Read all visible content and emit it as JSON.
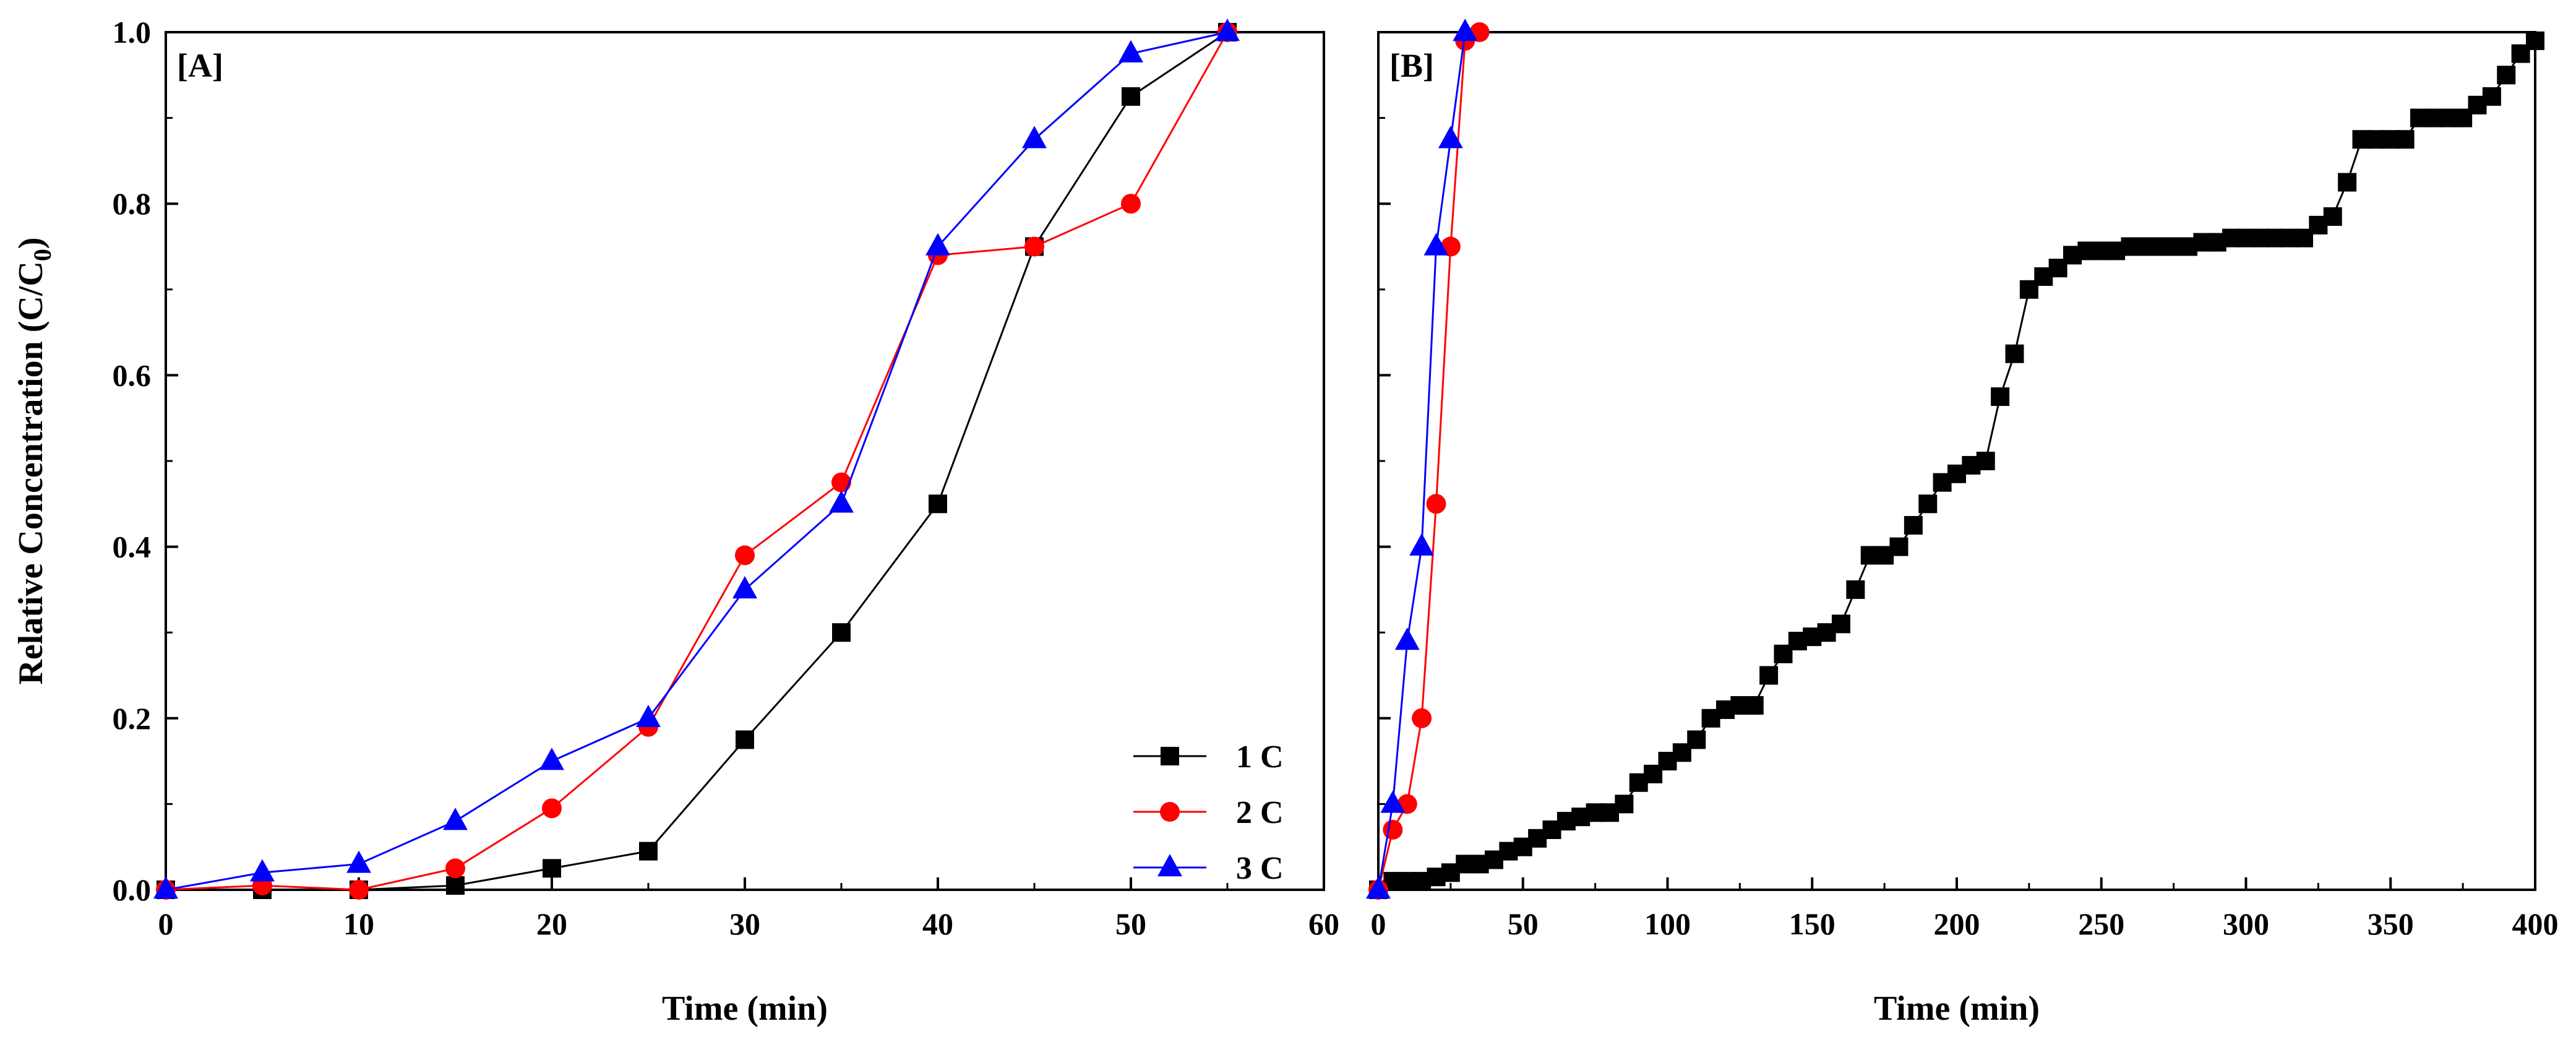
{
  "chart_data": [
    {
      "type": "line",
      "panel_label": "[A]",
      "xlabel": "Time (min)",
      "ylabel": "Relative Concentration (C/C",
      "ylabel_sub": "0",
      "ylabel_suffix": ")",
      "xlim": [
        0,
        60
      ],
      "ylim": [
        0,
        1.0
      ],
      "xticks": [
        0,
        10,
        20,
        30,
        40,
        50,
        60
      ],
      "yticks": [
        0.0,
        0.2,
        0.4,
        0.6,
        0.8,
        1.0
      ],
      "ytick_labels": [
        "0.0",
        "0.2",
        "0.4",
        "0.6",
        "0.8",
        "1.0"
      ],
      "legend": {
        "position": "bottom-right"
      },
      "series": [
        {
          "name": "1 C",
          "marker": "square",
          "color": "#000000",
          "x": [
            0,
            5,
            10,
            15,
            20,
            25,
            30,
            35,
            40,
            45,
            50,
            55
          ],
          "y": [
            0,
            0,
            0,
            0.005,
            0.025,
            0.045,
            0.175,
            0.3,
            0.45,
            0.75,
            0.925,
            1.0
          ]
        },
        {
          "name": "2 C",
          "marker": "circle",
          "color": "#ff0000",
          "x": [
            0,
            5,
            10,
            15,
            20,
            25,
            30,
            35,
            40,
            45,
            50,
            55
          ],
          "y": [
            0,
            0.005,
            0,
            0.025,
            0.095,
            0.19,
            0.39,
            0.475,
            0.74,
            0.75,
            0.8,
            1.0
          ]
        },
        {
          "name": "3 C",
          "marker": "triangle",
          "color": "#0000ff",
          "x": [
            0,
            5,
            10,
            15,
            20,
            25,
            30,
            35,
            40,
            45,
            50,
            55
          ],
          "y": [
            0,
            0.02,
            0.03,
            0.08,
            0.15,
            0.2,
            0.35,
            0.45,
            0.75,
            0.875,
            0.975,
            1.0
          ]
        }
      ]
    },
    {
      "type": "line",
      "panel_label": "[B]",
      "xlabel": "Time (min)",
      "xlim": [
        0,
        400
      ],
      "ylim": [
        0,
        1.0
      ],
      "xticks": [
        0,
        50,
        100,
        150,
        200,
        250,
        300,
        350,
        400
      ],
      "yticks": [
        0.0,
        0.2,
        0.4,
        0.6,
        0.8,
        1.0
      ],
      "series": [
        {
          "name": "1 C",
          "marker": "square",
          "color": "#000000",
          "x": [
            0,
            5,
            10,
            15,
            20,
            25,
            30,
            35,
            40,
            45,
            50,
            55,
            60,
            65,
            70,
            75,
            80,
            85,
            90,
            95,
            100,
            105,
            110,
            115,
            120,
            125,
            130,
            135,
            140,
            145,
            150,
            155,
            160,
            165,
            170,
            175,
            180,
            185,
            190,
            195,
            200,
            205,
            210,
            215,
            220,
            225,
            230,
            235,
            240,
            245,
            250,
            255,
            260,
            265,
            270,
            275,
            280,
            285,
            290,
            295,
            300,
            305,
            310,
            315,
            320,
            325,
            330,
            335,
            340,
            345,
            350,
            355,
            360,
            365,
            370,
            375,
            380,
            385,
            390,
            395,
            400
          ],
          "y": [
            0,
            0.01,
            0.01,
            0.01,
            0.015,
            0.02,
            0.03,
            0.03,
            0.035,
            0.045,
            0.05,
            0.06,
            0.07,
            0.08,
            0.085,
            0.09,
            0.09,
            0.1,
            0.125,
            0.135,
            0.15,
            0.16,
            0.175,
            0.2,
            0.21,
            0.215,
            0.215,
            0.25,
            0.275,
            0.29,
            0.295,
            0.3,
            0.31,
            0.35,
            0.39,
            0.39,
            0.4,
            0.425,
            0.45,
            0.475,
            0.485,
            0.495,
            0.5,
            0.575,
            0.625,
            0.7,
            0.715,
            0.725,
            0.74,
            0.745,
            0.745,
            0.745,
            0.75,
            0.75,
            0.75,
            0.75,
            0.75,
            0.755,
            0.755,
            0.76,
            0.76,
            0.76,
            0.76,
            0.76,
            0.76,
            0.775,
            0.785,
            0.825,
            0.875,
            0.875,
            0.875,
            0.875,
            0.9,
            0.9,
            0.9,
            0.9,
            0.915,
            0.925,
            0.95,
            0.975,
            0.99
          ]
        },
        {
          "name": "2 C",
          "marker": "circle",
          "color": "#ff0000",
          "x": [
            0,
            5,
            10,
            15,
            20,
            25,
            30,
            35
          ],
          "y": [
            0,
            0.07,
            0.1,
            0.2,
            0.45,
            0.75,
            0.99,
            1.0
          ]
        },
        {
          "name": "3 C",
          "marker": "triangle",
          "color": "#0000ff",
          "x": [
            0,
            5,
            10,
            15,
            20,
            25,
            30
          ],
          "y": [
            0,
            0.1,
            0.29,
            0.4,
            0.75,
            0.875,
            1.0
          ]
        }
      ]
    }
  ]
}
